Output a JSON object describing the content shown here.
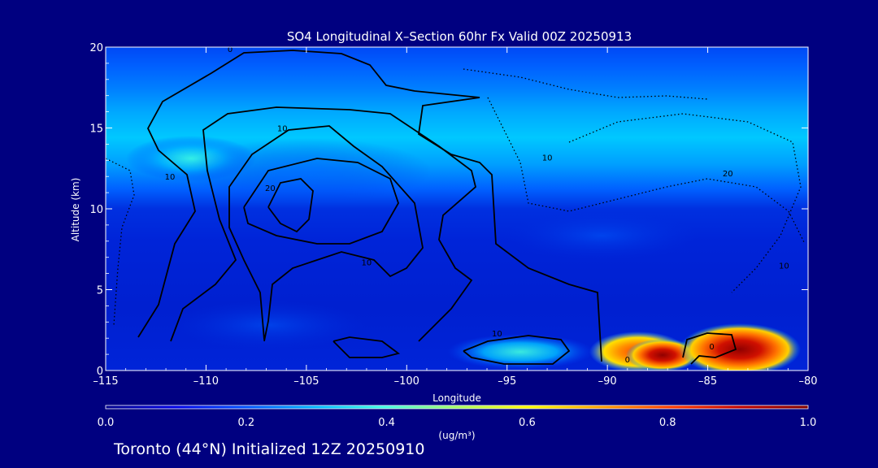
{
  "chart_data": {
    "type": "heatmap",
    "title": "SO4 Longitudinal X–Section 60hr  Fx Valid 00Z 20250913",
    "xlabel": "Longitude",
    "ylabel": "Altitude (km)",
    "xlim": [
      -115,
      -80
    ],
    "ylim": [
      0,
      20
    ],
    "x_ticks": [
      -115,
      -110,
      -105,
      -100,
      -95,
      -90,
      -85,
      -80
    ],
    "x_tick_labels": [
      "–115",
      "–110",
      "–105",
      "–100",
      "–95",
      "–90",
      "–85",
      "–80"
    ],
    "y_ticks": [
      0,
      5,
      10,
      15,
      20
    ],
    "y_tick_labels": [
      "0",
      "5",
      "10",
      "15",
      "20"
    ],
    "colorbar": {
      "min": 0.0,
      "max": 1.0,
      "ticks": [
        0.0,
        0.2,
        0.4,
        0.6,
        0.8,
        1.0
      ],
      "tick_labels": [
        "0.0",
        "0.2",
        "0.4",
        "0.6",
        "0.8",
        "1.0"
      ],
      "units": "(ug/m³)"
    },
    "contour_labels": [
      {
        "text": "0",
        "lon": -108.8,
        "alt": 19.7
      },
      {
        "text": "10",
        "lon": -106.2,
        "alt": 14.8
      },
      {
        "text": "20",
        "lon": -106.8,
        "alt": 11.1
      },
      {
        "text": "10",
        "lon": -111.8,
        "alt": 11.8
      },
      {
        "text": "10",
        "lon": -102.0,
        "alt": 6.5
      },
      {
        "text": "10",
        "lon": -93.0,
        "alt": 13.0
      },
      {
        "text": "20",
        "lon": -84.0,
        "alt": 12.0
      },
      {
        "text": "10",
        "lon": -81.2,
        "alt": 6.3
      },
      {
        "text": "10",
        "lon": -95.5,
        "alt": 2.1
      },
      {
        "text": "0",
        "lon": -89.0,
        "alt": 0.5
      },
      {
        "text": "0",
        "lon": -84.8,
        "alt": 1.3
      }
    ]
  },
  "footer": {
    "caption": "Toronto (44°N) Initialized 12Z 20250910"
  },
  "colors": {
    "background": "#000080",
    "colormap": [
      "#00008c",
      "#0000e6",
      "#0050ff",
      "#00b4ff",
      "#40ffe0",
      "#a0ff60",
      "#ffff00",
      "#ffa000",
      "#ff3c00",
      "#c00000",
      "#800000"
    ]
  }
}
